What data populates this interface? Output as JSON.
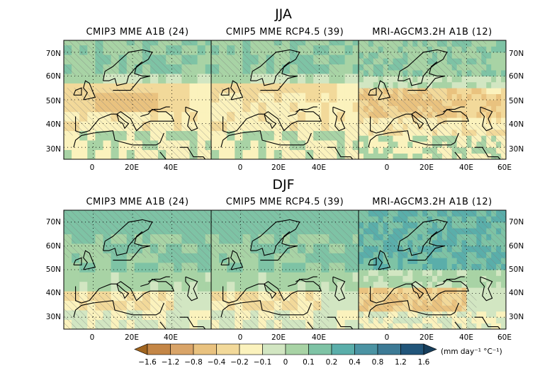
{
  "seasons": [
    {
      "label": "JJA",
      "panels": [
        {
          "title": "CMIP3 MME A1B (24)",
          "pattern": "cmip3_jja"
        },
        {
          "title": "CMIP5 MME RCP4.5 (39)",
          "pattern": "cmip5_jja"
        },
        {
          "title": "MRI-AGCM3.2H A1B (12)",
          "pattern": "mri_jja"
        }
      ]
    },
    {
      "label": "DJF",
      "panels": [
        {
          "title": "CMIP3 MME A1B (24)",
          "pattern": "cmip3_djf"
        },
        {
          "title": "CMIP5 MME RCP4.5 (39)",
          "pattern": "cmip5_djf"
        },
        {
          "title": "MRI-AGCM3.2H A1B (12)",
          "pattern": "mri_djf"
        }
      ]
    }
  ],
  "axes": {
    "x_ticks_short": [
      "0",
      "20E",
      "40E"
    ],
    "x_ticks_full": [
      "0",
      "20E",
      "40E",
      "60E"
    ],
    "y_ticks": [
      "70N",
      "60N",
      "50N",
      "40N",
      "30N"
    ]
  },
  "colorbar": {
    "labels": [
      "-1.6",
      "-1.2",
      "-0.8",
      "-0.4",
      "-0.2",
      "-0.1",
      "0",
      "0.1",
      "0.2",
      "0.4",
      "0.8",
      "1.2",
      "1.6"
    ],
    "unit": "(mm day⁻¹ °C⁻¹)",
    "colors": [
      "#a0641f",
      "#c48646",
      "#d9a468",
      "#e9c27f",
      "#f2d99a",
      "#fbf2bd",
      "#d2e6c2",
      "#a8d3a5",
      "#7ec3a5",
      "#5aaeaa",
      "#4b93a3",
      "#3c7a95",
      "#21557a",
      "#173e5c"
    ]
  }
}
